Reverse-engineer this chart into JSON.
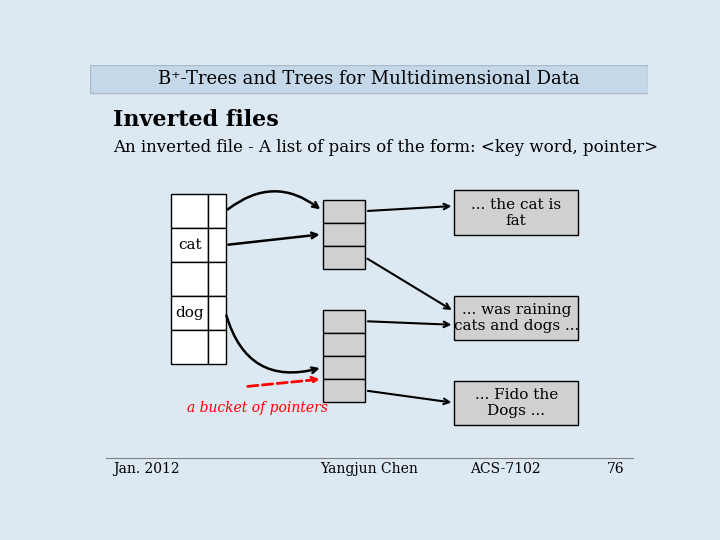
{
  "title": "B⁺-Trees and Trees for Multidimensional Data",
  "title_bg": "#c5d8ea",
  "bg_color": "#dce9f2",
  "heading": "Inverted files",
  "subtext": "An inverted file - A list of pairs of the form: <key word, pointer>",
  "footer_left": "Jan. 2012",
  "footer_center": "Yangjun Chen",
  "footer_right1": "ACS-7102",
  "footer_right2": "76",
  "box_fill": "#d0d0d0",
  "box_edge": "#888888",
  "label_cat": "cat",
  "label_dog": "dog",
  "label_bucket": "a bucket of pointers",
  "text_cat": "... the cat is\nfat",
  "text_dog": "... was raining\ncats and dogs ...",
  "text_fido": "... Fido the\nDogs ..."
}
